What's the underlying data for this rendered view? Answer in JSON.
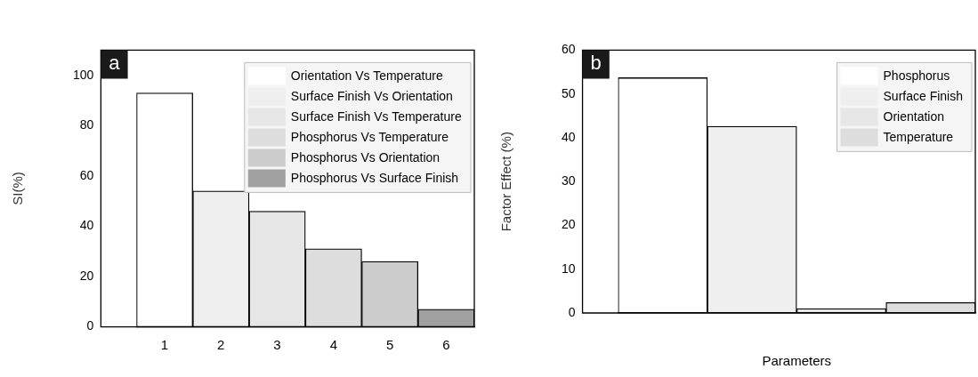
{
  "chart_data": [
    {
      "type": "bar",
      "title": "a",
      "ylabel": "SI(%)",
      "categories": [
        "1",
        "2",
        "3",
        "4",
        "5",
        "6"
      ],
      "legend": "top right",
      "series": [
        {
          "name": "Orientation Vs Temperature",
          "color": "#ffffff",
          "values": [
            93,
            null,
            null,
            null,
            null,
            null
          ]
        },
        {
          "name": "Surface Finish Vs Orientation",
          "color": "#efefef",
          "values": [
            null,
            54,
            null,
            null,
            null,
            null
          ]
        },
        {
          "name": "Surface Finish Vs Temperature",
          "color": "#e6e6e6",
          "values": [
            null,
            null,
            46,
            null,
            null,
            null
          ]
        },
        {
          "name": "Phosphorus Vs Temperature",
          "color": "#dddddd",
          "values": [
            null,
            null,
            null,
            31,
            null,
            null
          ]
        },
        {
          "name": "Phosphorus Vs Orientation",
          "color": "#cccccc",
          "values": [
            null,
            null,
            null,
            null,
            26,
            null
          ]
        },
        {
          "name": "Phosphorus Vs Surface Finish",
          "color": "#a0a0a0",
          "values": [
            null,
            null,
            null,
            null,
            null,
            7
          ]
        }
      ],
      "ylim": [
        0,
        110
      ],
      "yticks": [
        0,
        20,
        40,
        60,
        80,
        100
      ],
      "grid": false
    },
    {
      "type": "bar",
      "title": "b",
      "xlabel": "Parameters",
      "ylabel": "Factor Effect (%)",
      "categories": [
        null,
        null,
        null,
        null
      ],
      "legend": "top right",
      "series": [
        {
          "name": "Phosphorus",
          "color": "#ffffff",
          "values": [
            53.7,
            null,
            null,
            null
          ]
        },
        {
          "name": "Surface Finish",
          "color": "#efefef",
          "values": [
            null,
            42.6,
            null,
            null
          ]
        },
        {
          "name": "Orientation",
          "color": "#e6e6e6",
          "values": [
            null,
            null,
            1.0,
            null
          ]
        },
        {
          "name": "Temperature",
          "color": "#dddddd",
          "values": [
            null,
            null,
            null,
            2.4
          ]
        }
      ],
      "ylim": [
        0,
        60
      ],
      "yticks": [
        0,
        10,
        20,
        30,
        40,
        50,
        60
      ],
      "grid": false
    }
  ]
}
